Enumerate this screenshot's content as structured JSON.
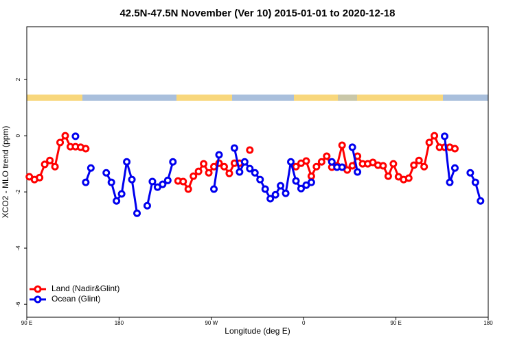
{
  "chart_data": {
    "type": "line",
    "title": "42.5N-47.5N November (Ver 10)   2015-01-01 to 2020-12-18",
    "xlabel": "Longitude (deg E)",
    "ylabel": "XCO2 - MLO trend (ppm)",
    "x": [
      92.5,
      97.5,
      102.5,
      107.5,
      112.5,
      117.5,
      122.5,
      127.5,
      132.5,
      137.5,
      142.5,
      147.5,
      152.5,
      157.5,
      162.5,
      167.5,
      172.5,
      177.5,
      182.5,
      187.5,
      192.5,
      197.5,
      202.5,
      207.5,
      212.5,
      217.5,
      222.5,
      227.5,
      232.5,
      237.5,
      242.5,
      247.5,
      252.5,
      257.5,
      262.5,
      267.5,
      272.5,
      277.5,
      282.5,
      287.5,
      292.5,
      297.5,
      302.5,
      307.5,
      312.5,
      317.5,
      322.5,
      327.5,
      332.5,
      337.5,
      342.5,
      347.5,
      352.5,
      357.5,
      362.5,
      367.5,
      372.5,
      377.5,
      382.5,
      387.5,
      392.5,
      397.5,
      402.5,
      407.5,
      412.5,
      417.5,
      422.5,
      427.5,
      432.5,
      437.5,
      442.5,
      447.5,
      452.5,
      457.5,
      462.5,
      467.5,
      472.5,
      477.5,
      482.5,
      487.5,
      492.5,
      497.5,
      502.5,
      507.5,
      512.5,
      517.5,
      522.5,
      527.5,
      532.5,
      537.5
    ],
    "series": [
      {
        "name": "Land (Nadir&Glint)",
        "color": "#ff0000",
        "values": [
          -1.46,
          -1.56,
          -1.49,
          -1.02,
          -0.88,
          -1.1,
          -0.24,
          0,
          -0.39,
          -0.39,
          -0.41,
          -0.46,
          null,
          null,
          null,
          null,
          null,
          null,
          null,
          null,
          null,
          null,
          null,
          null,
          null,
          null,
          null,
          null,
          null,
          -1.61,
          -1.63,
          -1.9,
          -1.44,
          -1.27,
          -1,
          -1.32,
          -1.1,
          -0.98,
          -1.1,
          -1.34,
          -0.98,
          -0.98,
          null,
          -0.51,
          null,
          null,
          null,
          null,
          null,
          null,
          null,
          null,
          -1.1,
          -0.98,
          -0.9,
          -1.44,
          -1.1,
          -0.93,
          -0.73,
          -1.12,
          -1.07,
          -0.34,
          -1.22,
          -1.07,
          -0.73,
          -1,
          -1,
          -0.95,
          -1.05,
          -1.07,
          -1.44,
          -1,
          -1.46,
          -1.56,
          -1.51,
          -1.05,
          -0.88,
          -1.1,
          -0.24,
          0,
          -0.41,
          -0.41,
          -0.41,
          -0.46,
          null,
          null,
          null,
          null,
          null,
          null
        ]
      },
      {
        "name": "Ocean (Glint)",
        "color": "#0000ee",
        "values": [
          null,
          null,
          null,
          null,
          null,
          null,
          null,
          null,
          null,
          -0.02,
          null,
          -1.66,
          -1.15,
          null,
          null,
          -1.32,
          -1.66,
          -2.32,
          -2.07,
          -0.93,
          -1.56,
          -2.76,
          null,
          -2.49,
          -1.63,
          -1.83,
          -1.73,
          -1.59,
          -0.93,
          null,
          null,
          null,
          null,
          null,
          null,
          null,
          -1.9,
          -0.68,
          null,
          null,
          -0.44,
          -1.29,
          -0.93,
          -1.17,
          -1.32,
          -1.56,
          -1.9,
          -2.24,
          -2.1,
          -1.78,
          -2.05,
          -0.93,
          -1.61,
          -1.88,
          -1.76,
          -1.66,
          null,
          null,
          null,
          -0.93,
          -1.12,
          -1.12,
          null,
          -0.41,
          -1.29,
          null,
          null,
          null,
          null,
          null,
          null,
          null,
          null,
          null,
          null,
          null,
          null,
          null,
          null,
          null,
          null,
          -0.02,
          -1.66,
          -1.15,
          null,
          null,
          -1.32,
          -1.66,
          -2.32,
          null
        ]
      }
    ],
    "xlim": [
      90,
      540
    ],
    "xticks": [
      {
        "value": 90,
        "label": "90 E"
      },
      180,
      {
        "value": 270,
        "label": "90 W"
      },
      {
        "value": 360,
        "label": "0"
      },
      {
        "value": 450,
        "label": "90 E"
      },
      {
        "value": 540,
        "label": "180"
      }
    ],
    "ylim": [
      -6.46,
      3.88
    ],
    "yticks": [
      -6,
      -4,
      -2,
      0,
      2
    ],
    "legend": "bottom-left"
  }
}
